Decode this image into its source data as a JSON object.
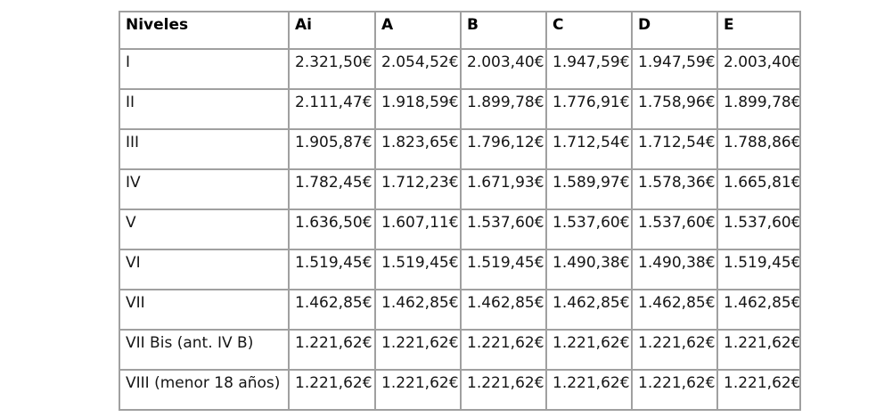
{
  "chart_data": {
    "type": "table",
    "title": "",
    "columns": [
      "Niveles",
      "Ai",
      "A",
      "B",
      "C",
      "D",
      "E"
    ],
    "rows": [
      {
        "label": "I",
        "values": [
          "2.321,50€",
          "2.054,52€",
          "2.003,40€",
          "1.947,59€",
          "1.947,59€",
          "2.003,40€"
        ]
      },
      {
        "label": "II",
        "values": [
          "2.111,47€",
          "1.918,59€",
          "1.899,78€",
          "1.776,91€",
          "1.758,96€",
          "1.899,78€"
        ]
      },
      {
        "label": "III",
        "values": [
          "1.905,87€",
          "1.823,65€",
          "1.796,12€",
          "1.712,54€",
          "1.712,54€",
          "1.788,86€"
        ]
      },
      {
        "label": "IV",
        "values": [
          "1.782,45€",
          "1.712,23€",
          "1.671,93€",
          "1.589,97€",
          "1.578,36€",
          "1.665,81€"
        ]
      },
      {
        "label": "V",
        "values": [
          "1.636,50€",
          "1.607,11€",
          "1.537,60€",
          "1.537,60€",
          "1.537,60€",
          "1.537,60€"
        ]
      },
      {
        "label": "VI",
        "values": [
          "1.519,45€",
          "1.519,45€",
          "1.519,45€",
          "1.490,38€",
          "1.490,38€",
          "1.519,45€"
        ]
      },
      {
        "label": "VII",
        "values": [
          "1.462,85€",
          "1.462,85€",
          "1.462,85€",
          "1.462,85€",
          "1.462,85€",
          "1.462,85€"
        ]
      },
      {
        "label": "VII Bis (ant. IV B)",
        "values": [
          "1.221,62€",
          "1.221,62€",
          "1.221,62€",
          "1.221,62€",
          "1.221,62€",
          "1.221,62€"
        ]
      },
      {
        "label": "VIII (menor 18 años)",
        "values": [
          "1.221,62€",
          "1.221,62€",
          "1.221,62€",
          "1.221,62€",
          "1.221,62€",
          "1.221,62€"
        ]
      }
    ],
    "colors": {
      "border": "#a0a0a0",
      "text": "#151515"
    },
    "layout": {
      "grid": true,
      "header_bold": true,
      "values_alignment": "right"
    }
  }
}
